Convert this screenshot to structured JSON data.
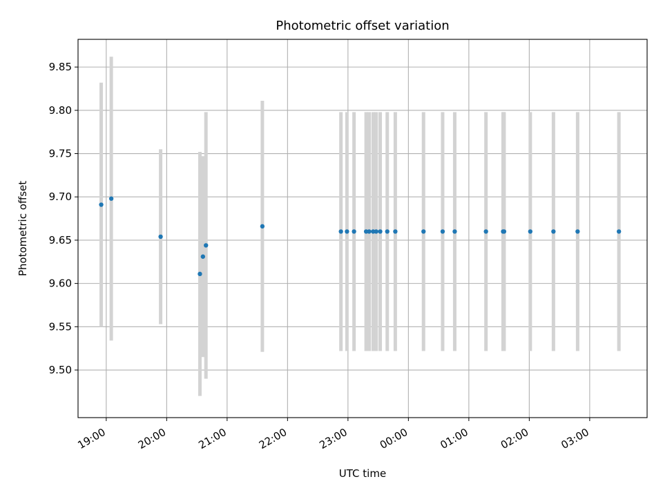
{
  "chart_data": {
    "type": "scatter",
    "title": "Photometric offset variation",
    "xlabel": "UTC time",
    "ylabel": "Photometric offset",
    "grid": true,
    "xlim": [
      "2023-01-01T18:32",
      "2023-01-02T03:57"
    ],
    "ylim": [
      9.445,
      9.882
    ],
    "x_ticks": [
      {
        "t": "2023-01-01T19:00",
        "label": "19:00"
      },
      {
        "t": "2023-01-01T20:00",
        "label": "20:00"
      },
      {
        "t": "2023-01-01T21:00",
        "label": "21:00"
      },
      {
        "t": "2023-01-01T22:00",
        "label": "22:00"
      },
      {
        "t": "2023-01-01T23:00",
        "label": "23:00"
      },
      {
        "t": "2023-01-02T00:00",
        "label": "00:00"
      },
      {
        "t": "2023-01-02T01:00",
        "label": "01:00"
      },
      {
        "t": "2023-01-02T02:00",
        "label": "02:00"
      },
      {
        "t": "2023-01-02T03:00",
        "label": "03:00"
      }
    ],
    "y_ticks": [
      {
        "v": 9.5,
        "label": "9.50"
      },
      {
        "v": 9.55,
        "label": "9.55"
      },
      {
        "v": 9.6,
        "label": "9.60"
      },
      {
        "v": 9.65,
        "label": "9.65"
      },
      {
        "v": 9.7,
        "label": "9.70"
      },
      {
        "v": 9.75,
        "label": "9.75"
      },
      {
        "v": 9.8,
        "label": "9.80"
      },
      {
        "v": 9.85,
        "label": "9.85"
      }
    ],
    "colors": {
      "point": "#1f77b4",
      "errorbar": "#d3d3d3"
    },
    "points": [
      {
        "t": "2023-01-01T18:55",
        "y": 9.691,
        "err": 0.141
      },
      {
        "t": "2023-01-01T19:05",
        "y": 9.698,
        "err": 0.164
      },
      {
        "t": "2023-01-01T19:54",
        "y": 9.654,
        "err": 0.101
      },
      {
        "t": "2023-01-01T20:33",
        "y": 9.611,
        "err": 0.141
      },
      {
        "t": "2023-01-01T20:36",
        "y": 9.631,
        "err": 0.116
      },
      {
        "t": "2023-01-01T20:39",
        "y": 9.644,
        "err": 0.154
      },
      {
        "t": "2023-01-01T21:35",
        "y": 9.666,
        "err": 0.145
      },
      {
        "t": "2023-01-01T22:53",
        "y": 9.66,
        "err": 0.138
      },
      {
        "t": "2023-01-01T22:59",
        "y": 9.66,
        "err": 0.138
      },
      {
        "t": "2023-01-01T23:06",
        "y": 9.66,
        "err": 0.138
      },
      {
        "t": "2023-01-01T23:18",
        "y": 9.66,
        "err": 0.138
      },
      {
        "t": "2023-01-01T23:21",
        "y": 9.66,
        "err": 0.138
      },
      {
        "t": "2023-01-01T23:25",
        "y": 9.66,
        "err": 0.138
      },
      {
        "t": "2023-01-01T23:28",
        "y": 9.66,
        "err": 0.138
      },
      {
        "t": "2023-01-01T23:32",
        "y": 9.66,
        "err": 0.138
      },
      {
        "t": "2023-01-01T23:39",
        "y": 9.66,
        "err": 0.138
      },
      {
        "t": "2023-01-01T23:47",
        "y": 9.66,
        "err": 0.138
      },
      {
        "t": "2023-01-02T00:15",
        "y": 9.66,
        "err": 0.138
      },
      {
        "t": "2023-01-02T00:34",
        "y": 9.66,
        "err": 0.138
      },
      {
        "t": "2023-01-02T00:46",
        "y": 9.66,
        "err": 0.138
      },
      {
        "t": "2023-01-02T01:17",
        "y": 9.66,
        "err": 0.138
      },
      {
        "t": "2023-01-02T01:34",
        "y": 9.66,
        "err": 0.138
      },
      {
        "t": "2023-01-02T01:35",
        "y": 9.66,
        "err": 0.138
      },
      {
        "t": "2023-01-02T02:01",
        "y": 9.66,
        "err": 0.138
      },
      {
        "t": "2023-01-02T02:24",
        "y": 9.66,
        "err": 0.138
      },
      {
        "t": "2023-01-02T02:48",
        "y": 9.66,
        "err": 0.138
      },
      {
        "t": "2023-01-02T03:29",
        "y": 9.66,
        "err": 0.138
      }
    ]
  }
}
